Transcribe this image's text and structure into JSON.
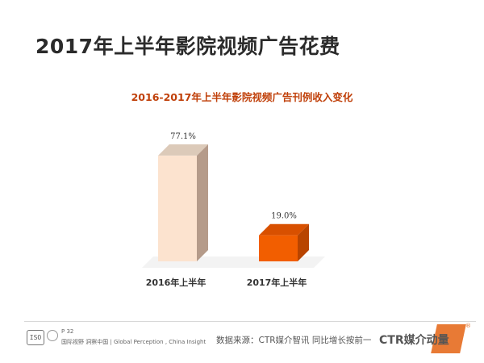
{
  "slide": {
    "title": "2017年上半年影院视频广告花费",
    "page_number": "P 32",
    "slogan": "国际视野  洞察中国 | Global Perception , China  Insight",
    "source_note": "数据来源：CTR媒介智讯   同比增长按前一",
    "brand_text": "CTR媒介动量",
    "logo_text": "CTR"
  },
  "chart_data": {
    "type": "bar",
    "title": "2016-2017年上半年影院视频广告刊例收入变化",
    "categories": [
      "2016年上半年",
      "2017年上半年"
    ],
    "values": [
      77.1,
      19.0
    ],
    "data_labels": [
      "77.1%",
      "19.0%"
    ],
    "unit": "%",
    "ylim": [
      0,
      100
    ],
    "grid": false,
    "legend": "none",
    "colors": {
      "bar_2016_front": "#fce3cf",
      "bar_2016_side": "#b59b8a",
      "bar_2016_top": "#dccab9",
      "bar_2017_front": "#f25e00",
      "bar_2017_side": "#b84400",
      "bar_2017_top": "#d85000",
      "title_color": "#c0400a",
      "accent": "#e66b1f"
    }
  }
}
